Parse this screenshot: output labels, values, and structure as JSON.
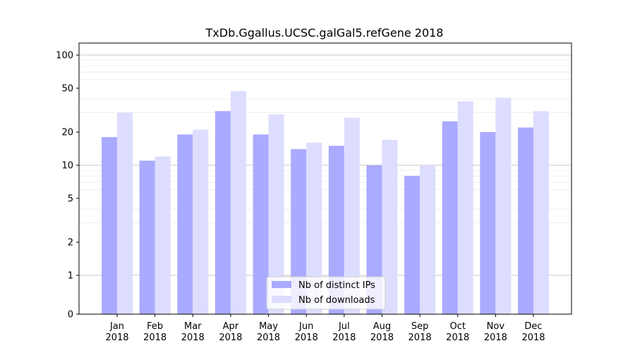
{
  "chart_data": {
    "type": "bar",
    "title": "TxDb.Ggallus.UCSC.galGal5.refGene 2018",
    "xlabel": "",
    "ylabel": "",
    "yscale": "log1p",
    "ylim": [
      0,
      120
    ],
    "yticks": [
      0,
      1,
      2,
      5,
      10,
      20,
      50,
      100
    ],
    "ytick_labels": [
      "0",
      "1",
      "2",
      "5",
      "10",
      "20",
      "50",
      "100"
    ],
    "grid": true,
    "legend_position": "bottom-center",
    "categories": [
      [
        "Jan",
        "2018"
      ],
      [
        "Feb",
        "2018"
      ],
      [
        "Mar",
        "2018"
      ],
      [
        "Apr",
        "2018"
      ],
      [
        "May",
        "2018"
      ],
      [
        "Jun",
        "2018"
      ],
      [
        "Jul",
        "2018"
      ],
      [
        "Aug",
        "2018"
      ],
      [
        "Sep",
        "2018"
      ],
      [
        "Oct",
        "2018"
      ],
      [
        "Nov",
        "2018"
      ],
      [
        "Dec",
        "2018"
      ]
    ],
    "series": [
      {
        "name": "Nb of distinct IPs",
        "color": "#aaaaff",
        "values": [
          18,
          11,
          19,
          31,
          19,
          14,
          15,
          10,
          8,
          25,
          20,
          22
        ]
      },
      {
        "name": "Nb of downloads",
        "color": "#ddddff",
        "values": [
          30,
          12,
          21,
          47,
          29,
          16,
          27,
          17,
          10,
          38,
          41,
          31
        ]
      }
    ]
  }
}
